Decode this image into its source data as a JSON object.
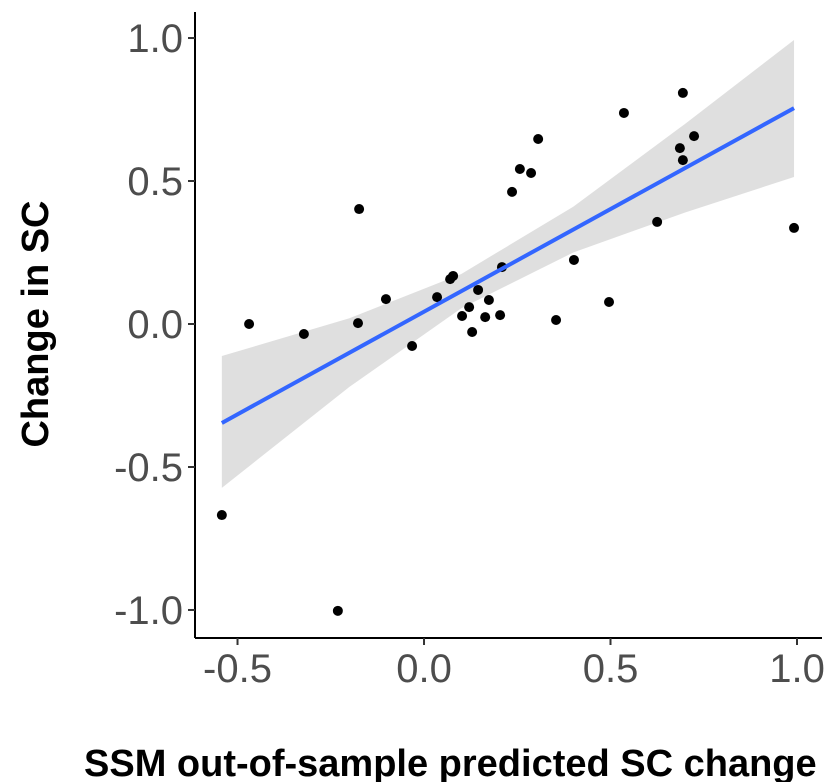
{
  "chart_data": {
    "type": "scatter",
    "x_label": "SSM out-of-sample predicted SC change",
    "y_label": "Change in SC",
    "xlim": [
      -0.614,
      1.067
    ],
    "ylim": [
      -1.098,
      1.091
    ],
    "xticks": [
      {
        "value": -0.5,
        "label": "-0.5"
      },
      {
        "value": 0,
        "label": "0.0"
      },
      {
        "value": 0.5,
        "label": "0.5"
      },
      {
        "value": 1,
        "label": "1.0"
      }
    ],
    "yticks": [
      {
        "value": -1,
        "label": "-1.0"
      },
      {
        "value": -0.5,
        "label": "-0.5"
      },
      {
        "value": 0,
        "label": "0.0"
      },
      {
        "value": 0.5,
        "label": "0.5"
      },
      {
        "value": 1,
        "label": "1.0"
      }
    ],
    "points": {
      "color": "#000000",
      "x": [
        -0.542,
        -0.469,
        -0.322,
        -0.174,
        -0.177,
        -0.231,
        -0.102,
        -0.032,
        0.035,
        0.07,
        0.078,
        0.102,
        0.121,
        0.129,
        0.145,
        0.164,
        0.174,
        0.204,
        0.209,
        0.236,
        0.257,
        0.287,
        0.306,
        0.354,
        0.402,
        0.496,
        0.536,
        0.625,
        0.686,
        0.694,
        0.694,
        0.724,
        0.992
      ],
      "y": [
        -0.668,
        0.0,
        -0.035,
        0.402,
        0.003,
        -1.003,
        0.087,
        -0.077,
        0.094,
        0.157,
        0.168,
        0.028,
        0.059,
        -0.028,
        0.119,
        0.024,
        0.084,
        0.031,
        0.199,
        0.462,
        0.542,
        0.528,
        0.647,
        0.014,
        0.224,
        0.077,
        0.738,
        0.357,
        0.615,
        0.808,
        0.573,
        0.657,
        0.336
      ]
    },
    "fit": {
      "color": "#3366ff",
      "x": [
        -0.542,
        0.992
      ],
      "y": [
        -0.346,
        0.755
      ]
    },
    "band": {
      "color": "#d9d9d9",
      "x": [
        -0.542,
        -0.2,
        0.1,
        0.4,
        0.7,
        0.992
      ],
      "lower": [
        -0.573,
        -0.22,
        0.055,
        0.25,
        0.39,
        0.514
      ],
      "upper": [
        -0.112,
        0.02,
        0.175,
        0.41,
        0.7,
        0.993
      ]
    }
  }
}
